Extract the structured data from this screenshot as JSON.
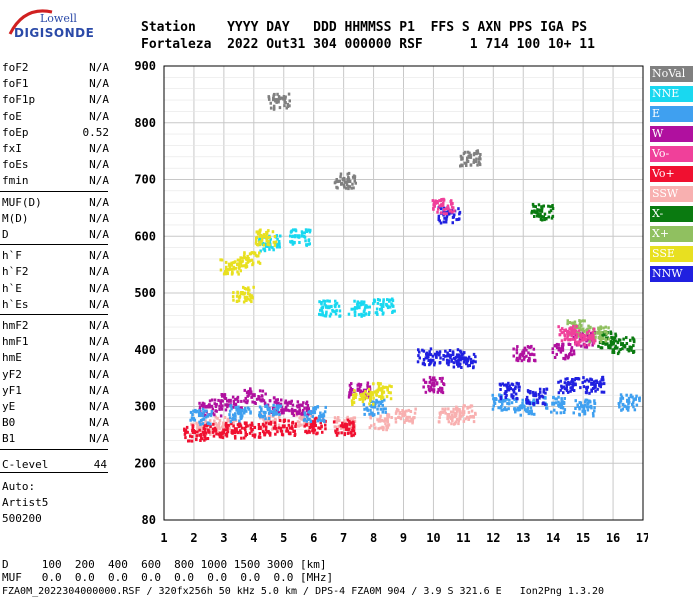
{
  "logo": {
    "line1": "Lowell",
    "line2": "DIGISONDE"
  },
  "header": {
    "row1": "Station    YYYY DAY   DDD HHMMSS P1  FFS S AXN PPS IGA PS",
    "row2": "Fortaleza  2022 Out31 304 000000 RSF      1 714 100 10+ 11"
  },
  "params_group1": [
    {
      "name": "foF2",
      "value": "N/A"
    },
    {
      "name": "foF1",
      "value": "N/A"
    },
    {
      "name": "foF1p",
      "value": "N/A"
    },
    {
      "name": "foE",
      "value": "N/A"
    },
    {
      "name": "foEp",
      "value": "0.52"
    },
    {
      "name": "fxI",
      "value": "N/A"
    },
    {
      "name": "foEs",
      "value": "N/A"
    },
    {
      "name": "fmin",
      "value": "N/A"
    }
  ],
  "params_group2": [
    {
      "name": "MUF(D)",
      "value": "N/A"
    },
    {
      "name": "M(D)",
      "value": "N/A"
    },
    {
      "name": "D",
      "value": "N/A"
    }
  ],
  "params_group3": [
    {
      "name": "h`F",
      "value": "N/A"
    },
    {
      "name": "h`F2",
      "value": "N/A"
    },
    {
      "name": "h`E",
      "value": "N/A"
    },
    {
      "name": "h`Es",
      "value": "N/A"
    }
  ],
  "params_group4": [
    {
      "name": "hmF2",
      "value": "N/A"
    },
    {
      "name": "hmF1",
      "value": "N/A"
    },
    {
      "name": "hmE",
      "value": "N/A"
    },
    {
      "name": "yF2",
      "value": "N/A"
    },
    {
      "name": "yF1",
      "value": "N/A"
    },
    {
      "name": "yE",
      "value": "N/A"
    },
    {
      "name": "B0",
      "value": "N/A"
    },
    {
      "name": "B1",
      "value": "N/A"
    }
  ],
  "clevel": {
    "name": "C-level",
    "value": "44"
  },
  "auto": {
    "line1": "Auto:",
    "line2": "Artist5",
    "line3": "500200"
  },
  "legend": [
    {
      "label": "NoVal",
      "color": "#808080"
    },
    {
      "label": "NNE",
      "color": "#19d8f0"
    },
    {
      "label": "E",
      "color": "#3fa0f0"
    },
    {
      "label": "W",
      "color": "#b0109f"
    },
    {
      "label": "Vo-",
      "color": "#f0409a"
    },
    {
      "label": "Vo+",
      "color": "#f01030"
    },
    {
      "label": "SSW",
      "color": "#f8b0b0"
    },
    {
      "label": "X-",
      "color": "#0a7a10"
    },
    {
      "label": "X+",
      "color": "#90c060"
    },
    {
      "label": "SSE",
      "color": "#e8e020"
    },
    {
      "label": "NNW",
      "color": "#2020e0"
    }
  ],
  "chart_data": {
    "type": "scatter",
    "x_ticks": [
      "1",
      "2",
      "3",
      "4",
      "5",
      "6",
      "7",
      "8",
      "9",
      "10",
      "11",
      "12",
      "13",
      "14",
      "15",
      "16",
      "17"
    ],
    "y_ticks": [
      "80",
      "200",
      "300",
      "400",
      "500",
      "600",
      "700",
      "800",
      "900"
    ],
    "xlim": [
      1,
      17
    ],
    "grid": true,
    "series": [
      {
        "name": "SSW",
        "color": "#f8b0b0",
        "points": [
          [
            2.2,
            265
          ],
          [
            3,
            270
          ],
          [
            4.5,
            275
          ],
          [
            5.6,
            280
          ],
          [
            7,
            270
          ],
          [
            8.2,
            275
          ],
          [
            9,
            285
          ],
          [
            10.5,
            285
          ],
          [
            11,
            290
          ]
        ]
      },
      {
        "name": "Vo+",
        "color": "#f01030",
        "points": [
          [
            2,
            255
          ],
          [
            2.7,
            258
          ],
          [
            3.4,
            260
          ],
          [
            4.2,
            262
          ],
          [
            5,
            265
          ],
          [
            6,
            268
          ],
          [
            7,
            265
          ]
        ]
      },
      {
        "name": "W",
        "color": "#b0109f",
        "points": [
          [
            2.5,
            300
          ],
          [
            3.2,
            310
          ],
          [
            4,
            320
          ],
          [
            4.8,
            305
          ],
          [
            5.5,
            300
          ],
          [
            7.5,
            330
          ],
          [
            10,
            340
          ],
          [
            13,
            395
          ],
          [
            14.3,
            400
          ],
          [
            15,
            420
          ]
        ]
      },
      {
        "name": "E",
        "color": "#3fa0f0",
        "points": [
          [
            2.2,
            285
          ],
          [
            3.5,
            290
          ],
          [
            4.5,
            295
          ],
          [
            6,
            290
          ],
          [
            8,
            300
          ],
          [
            12.3,
            310
          ],
          [
            13,
            300
          ],
          [
            14,
            305
          ],
          [
            15,
            300
          ],
          [
            16.5,
            310
          ]
        ]
      },
      {
        "name": "NNE",
        "color": "#19d8f0",
        "points": [
          [
            6.5,
            475
          ],
          [
            7.5,
            475
          ],
          [
            8.3,
            478
          ],
          [
            4.5,
            590
          ],
          [
            5.5,
            600
          ]
        ]
      },
      {
        "name": "NNW",
        "color": "#2020e0",
        "points": [
          [
            9.8,
            390
          ],
          [
            10.5,
            390
          ],
          [
            11,
            385
          ],
          [
            12.5,
            330
          ],
          [
            13.4,
            320
          ],
          [
            14.5,
            340
          ],
          [
            15.3,
            340
          ],
          [
            10.5,
            640
          ]
        ]
      },
      {
        "name": "SSE",
        "color": "#e8e020",
        "points": [
          [
            3.2,
            550
          ],
          [
            3.8,
            560
          ],
          [
            4.4,
            600
          ],
          [
            3.6,
            500
          ],
          [
            7.6,
            320
          ],
          [
            8.2,
            330
          ]
        ]
      },
      {
        "name": "X-",
        "color": "#0a7a10",
        "points": [
          [
            15.8,
            420
          ],
          [
            16.3,
            410
          ],
          [
            13.6,
            645
          ]
        ]
      },
      {
        "name": "X+",
        "color": "#90c060",
        "points": [
          [
            14.8,
            440
          ],
          [
            15.5,
            430
          ]
        ]
      },
      {
        "name": "Vo-",
        "color": "#f0409a",
        "points": [
          [
            14.5,
            430
          ],
          [
            15,
            425
          ],
          [
            10.3,
            655
          ]
        ]
      },
      {
        "name": "NoVal",
        "color": "#808080",
        "points": [
          [
            4.8,
            840
          ],
          [
            11.2,
            740
          ],
          [
            7,
            700
          ]
        ]
      }
    ]
  },
  "footer": {
    "row1": "D     100  200  400  600  800 1000 1500 3000 [km]",
    "row2": "MUF   0.0  0.0  0.0  0.0  0.0  0.0  0.0  0.0 [MHz]",
    "row3": "FZA0M_2022304000000.RSF / 320fx256h 50 kHz 5.0 km / DPS-4 FZA0M 904 / 3.9 S 321.6 E   Ion2Png 1.3.20"
  }
}
